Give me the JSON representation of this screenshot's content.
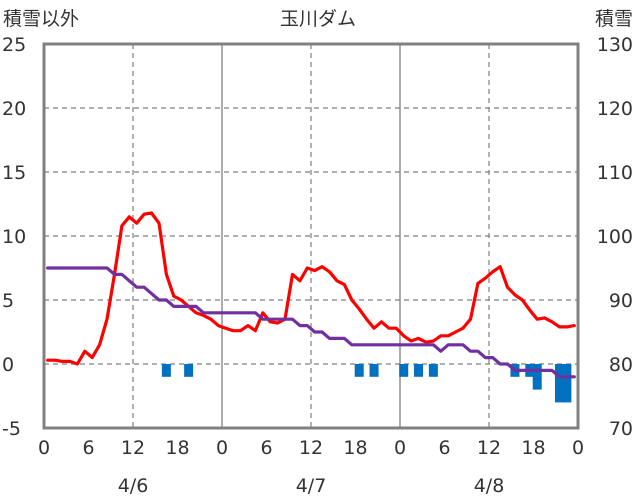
{
  "chart_data": {
    "type": "line",
    "title": "玉川ダム",
    "left_axis": {
      "label": "積雪以外",
      "min": -5,
      "max": 25,
      "ticks": [
        "25",
        "20",
        "15",
        "10",
        "5",
        "0",
        "-5"
      ]
    },
    "right_axis": {
      "label": "積雪",
      "min": 70,
      "max": 130,
      "ticks": [
        "130",
        "120",
        "110",
        "100",
        "90",
        "80",
        "70"
      ]
    },
    "x_axis": {
      "hours_min": 0,
      "hours_max": 72,
      "tick_labels": [
        "0",
        "6",
        "12",
        "18",
        "0",
        "6",
        "12",
        "18",
        "0",
        "6",
        "12",
        "18",
        "0"
      ],
      "date_labels": [
        "4/6",
        "4/7",
        "4/8"
      ]
    },
    "grid": true,
    "series": [
      {
        "name": "",
        "axis": "left",
        "color": "#ff0000",
        "x": [
          0,
          1,
          2,
          3,
          4,
          5,
          6,
          7,
          8,
          9,
          10,
          11,
          12,
          13,
          14,
          15,
          16,
          17,
          18,
          19,
          20,
          21,
          22,
          23,
          24,
          25,
          26,
          27,
          28,
          29,
          30,
          31,
          32,
          33,
          34,
          35,
          36,
          37,
          38,
          39,
          40,
          41,
          42,
          43,
          44,
          45,
          46,
          47,
          48,
          49,
          50,
          51,
          52,
          53,
          54,
          55,
          56,
          57,
          58,
          59,
          60,
          61,
          62,
          63,
          64,
          65,
          66,
          67,
          68,
          69,
          70,
          71
        ],
        "y": [
          0.3,
          0.3,
          0.2,
          0.2,
          0.0,
          1.0,
          0.5,
          1.5,
          3.5,
          7.0,
          10.8,
          11.5,
          11.0,
          11.7,
          11.8,
          11.0,
          7.0,
          5.3,
          5.0,
          4.5,
          4.0,
          3.8,
          3.5,
          3.0,
          2.8,
          2.6,
          2.6,
          3.0,
          2.6,
          4.0,
          3.3,
          3.2,
          3.5,
          7.0,
          6.5,
          7.5,
          7.3,
          7.6,
          7.2,
          6.5,
          6.2,
          5.0,
          4.3,
          3.5,
          2.8,
          3.3,
          2.8,
          2.8,
          2.2,
          1.8,
          2.0,
          1.7,
          1.8,
          2.2,
          2.2,
          2.5,
          2.8,
          3.5,
          6.3,
          6.7,
          7.2,
          7.6,
          6.0,
          5.4,
          5.0,
          4.2,
          3.5,
          3.6,
          3.3,
          2.9,
          2.9,
          3.0
        ]
      },
      {
        "name": "",
        "axis": "right",
        "color": "#7030a0",
        "x": [
          0,
          1,
          2,
          3,
          4,
          5,
          6,
          7,
          8,
          9,
          10,
          11,
          12,
          13,
          14,
          15,
          16,
          17,
          18,
          19,
          20,
          21,
          22,
          23,
          24,
          25,
          26,
          27,
          28,
          29,
          30,
          31,
          32,
          33,
          34,
          35,
          36,
          37,
          38,
          39,
          40,
          41,
          42,
          43,
          44,
          45,
          46,
          47,
          48,
          49,
          50,
          51,
          52,
          53,
          54,
          55,
          56,
          57,
          58,
          59,
          60,
          61,
          62,
          63,
          64,
          65,
          66,
          67,
          68,
          69,
          70,
          71
        ],
        "y": [
          95,
          95,
          95,
          95,
          95,
          95,
          95,
          95,
          95,
          94,
          94,
          93,
          92,
          92,
          91,
          90,
          90,
          89,
          89,
          89,
          89,
          88,
          88,
          88,
          88,
          88,
          88,
          88,
          88,
          87,
          87,
          87,
          87,
          87,
          86,
          86,
          85,
          85,
          84,
          84,
          84,
          83,
          83,
          83,
          83,
          83,
          83,
          83,
          83,
          83,
          83,
          83,
          83,
          82,
          83,
          83,
          83,
          82,
          82,
          81,
          81,
          80,
          80,
          79,
          79,
          79,
          79,
          79,
          79,
          78,
          78,
          78
        ]
      },
      {
        "name": "",
        "axis": "left",
        "type": "bar",
        "color": "#0070c0",
        "x": [
          16,
          19,
          42,
          44,
          48,
          50,
          52,
          63,
          65,
          66,
          69,
          70
        ],
        "y": [
          -1,
          -1,
          -1,
          -1,
          -1,
          -1,
          -1,
          -1,
          -1,
          -2,
          -3,
          -3
        ]
      }
    ]
  }
}
